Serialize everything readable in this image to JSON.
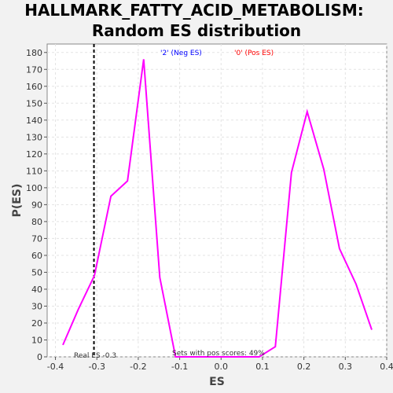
{
  "chart_data": {
    "type": "line",
    "title_line1": "HALLMARK_FATTY_ACID_METABOLISM:",
    "title_line2": "Random ES distribution",
    "xlabel": "ES",
    "ylabel": "P(ES)",
    "xlim": [
      -0.42,
      0.4
    ],
    "ylim": [
      0,
      185
    ],
    "x_ticks": [
      "-0.4",
      "-0.3",
      "-0.2",
      "-0.1",
      "0.0",
      "0.1",
      "0.2",
      "0.3",
      "0.4"
    ],
    "x_tick_values": [
      -0.4,
      -0.3,
      -0.2,
      -0.1,
      0.0,
      0.1,
      0.2,
      0.3,
      0.4
    ],
    "y_ticks": [
      "0",
      "10",
      "20",
      "30",
      "40",
      "50",
      "60",
      "70",
      "80",
      "90",
      "100",
      "110",
      "120",
      "130",
      "140",
      "150",
      "160",
      "170",
      "180"
    ],
    "y_tick_values": [
      0,
      10,
      20,
      30,
      40,
      50,
      60,
      70,
      80,
      90,
      100,
      110,
      120,
      130,
      140,
      150,
      160,
      170,
      180
    ],
    "grid": true,
    "series": [
      {
        "color": "#ff00ff",
        "x": [
          -0.382,
          -0.345,
          -0.306,
          -0.266,
          -0.226,
          -0.187,
          -0.148,
          -0.11,
          0.092,
          0.131,
          0.17,
          0.208,
          0.248,
          0.286,
          0.326,
          0.364
        ],
        "y": [
          7,
          28,
          48,
          95,
          104,
          176,
          47,
          0,
          0,
          6,
          109,
          145,
          111,
          64,
          43,
          16
        ]
      }
    ],
    "legend": [
      {
        "label": "'2' (Neg ES)",
        "color": "#0000ff"
      },
      {
        "label": "'0' (Pos ES)",
        "color": "#ff0000"
      }
    ],
    "real_es": {
      "value": -0.307,
      "label": "Real ES -0.3"
    },
    "annotation": "Sets with pos scores: 49%"
  }
}
